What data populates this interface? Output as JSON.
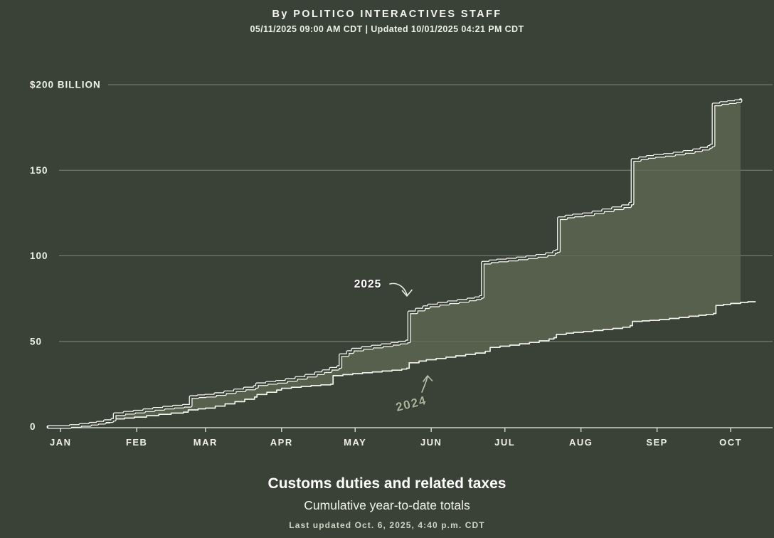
{
  "header": {
    "byline": "By POLITICO INTERACTIVES STAFF",
    "dateline": "05/11/2025 09:00 AM CDT | Updated 10/01/2025 04:21 PM CDT"
  },
  "footer": {
    "title": "Customs duties and related taxes",
    "subtitle": "Cumulative year-to-date totals",
    "last_updated": "Last updated Oct. 6, 2025, 4:40 p.m. CDT"
  },
  "colors": {
    "background": "#3a4237",
    "area_fill": "#57604d",
    "grid": "rgba(230,235,225,0.32)",
    "grid_over_fill": "rgba(240,244,235,0.10)",
    "axis": "#cdd2c5",
    "axis_label": "#eff1e8",
    "line_2025": "#f5f6f0",
    "line_2024": "#f2f3ec",
    "label_2025": "#ffffff",
    "label_2024": "#a9b39c",
    "arrow_2025": "#e8ebe2",
    "arrow_2024": "#b9c1ae"
  },
  "chart_data": {
    "type": "area",
    "title": "Customs duties and related taxes",
    "subtitle": "Cumulative year-to-date totals",
    "unit": "USD billions, cumulative year-to-date",
    "x_axis": {
      "tick_labels": [
        "JAN",
        "FEB",
        "MAR",
        "APR",
        "MAY",
        "JUN",
        "JUL",
        "AUG",
        "SEP",
        "OCT"
      ],
      "month_start_days": [
        0,
        31,
        59,
        90,
        120,
        151,
        181,
        212,
        243,
        273
      ],
      "grid": false
    },
    "y_axis": {
      "range": [
        0,
        200
      ],
      "ticks": [
        {
          "value": 200,
          "label": "$200 BILLION"
        },
        {
          "value": 150,
          "label": "150"
        },
        {
          "value": 100,
          "label": "100"
        },
        {
          "value": 50,
          "label": "50"
        },
        {
          "value": 0,
          "label": "0"
        }
      ],
      "grid": true
    },
    "annotations": [
      {
        "label": "2025",
        "series": "2025"
      },
      {
        "label": "2024",
        "series": "2024"
      }
    ],
    "fill_between": [
      "2025",
      "2024"
    ],
    "series": [
      {
        "name": "2025",
        "style": "double-line",
        "points_day_value": [
          [
            -5,
            0
          ],
          [
            0,
            0
          ],
          [
            4,
            0.6
          ],
          [
            8,
            1.2
          ],
          [
            12,
            1.9
          ],
          [
            15,
            2.5
          ],
          [
            18,
            3.4
          ],
          [
            21,
            4.2
          ],
          [
            22,
            7.5
          ],
          [
            26,
            8.3
          ],
          [
            30,
            9
          ],
          [
            34,
            9.8
          ],
          [
            38,
            10.6
          ],
          [
            42,
            11.3
          ],
          [
            46,
            11.9
          ],
          [
            50,
            12.4
          ],
          [
            53,
            17.5
          ],
          [
            56,
            18
          ],
          [
            59,
            18.3
          ],
          [
            63,
            19.2
          ],
          [
            67,
            20.3
          ],
          [
            71,
            21.4
          ],
          [
            75,
            22.5
          ],
          [
            79,
            23.4
          ],
          [
            80,
            25
          ],
          [
            84,
            25.8
          ],
          [
            88,
            26.4
          ],
          [
            92,
            27.5
          ],
          [
            96,
            28.7
          ],
          [
            100,
            30
          ],
          [
            104,
            31.4
          ],
          [
            107,
            32.6
          ],
          [
            110,
            34
          ],
          [
            113,
            35
          ],
          [
            114,
            42
          ],
          [
            117,
            43.8
          ],
          [
            119,
            45.2
          ],
          [
            123,
            46.2
          ],
          [
            127,
            47
          ],
          [
            131,
            47.8
          ],
          [
            135,
            48.6
          ],
          [
            138,
            49.3
          ],
          [
            141,
            50
          ],
          [
            142,
            67
          ],
          [
            145,
            68.6
          ],
          [
            148,
            70
          ],
          [
            150,
            71
          ],
          [
            154,
            72
          ],
          [
            158,
            72.9
          ],
          [
            162,
            73.7
          ],
          [
            166,
            74.5
          ],
          [
            169,
            75.2
          ],
          [
            171,
            76
          ],
          [
            172,
            96
          ],
          [
            175,
            96.8
          ],
          [
            178,
            97.3
          ],
          [
            182,
            97.8
          ],
          [
            186,
            98.5
          ],
          [
            190,
            99.2
          ],
          [
            194,
            100
          ],
          [
            198,
            101
          ],
          [
            201,
            102.2
          ],
          [
            202,
            102.8
          ],
          [
            203,
            122
          ],
          [
            206,
            123
          ],
          [
            209,
            123.6
          ],
          [
            213,
            124.3
          ],
          [
            217,
            125.4
          ],
          [
            221,
            126.6
          ],
          [
            225,
            127.8
          ],
          [
            229,
            129
          ],
          [
            232,
            130.5
          ],
          [
            233,
            156
          ],
          [
            236,
            157
          ],
          [
            239,
            157.8
          ],
          [
            242,
            158.4
          ],
          [
            246,
            159
          ],
          [
            250,
            159.8
          ],
          [
            254,
            160.7
          ],
          [
            258,
            161.7
          ],
          [
            261,
            162.6
          ],
          [
            264,
            163.6
          ],
          [
            265,
            164.5
          ],
          [
            266,
            188.5
          ],
          [
            269,
            189.3
          ],
          [
            272,
            189.8
          ],
          [
            275,
            190.4
          ],
          [
            277,
            191
          ]
        ]
      },
      {
        "name": "2024",
        "style": "line",
        "points_day_value": [
          [
            -5,
            0
          ],
          [
            0,
            0
          ],
          [
            5,
            0.8
          ],
          [
            10,
            1.6
          ],
          [
            15,
            2.4
          ],
          [
            20,
            3.2
          ],
          [
            21,
            4.7
          ],
          [
            26,
            5.2
          ],
          [
            30,
            5.8
          ],
          [
            35,
            6.6
          ],
          [
            40,
            7.4
          ],
          [
            45,
            8.1
          ],
          [
            50,
            8.7
          ],
          [
            52,
            10
          ],
          [
            56,
            10.6
          ],
          [
            59,
            11
          ],
          [
            63,
            12.2
          ],
          [
            67,
            13.5
          ],
          [
            71,
            14.8
          ],
          [
            75,
            16.2
          ],
          [
            79,
            17.5
          ],
          [
            80,
            19
          ],
          [
            84,
            20.3
          ],
          [
            88,
            21.6
          ],
          [
            90,
            22.6
          ],
          [
            94,
            23.2
          ],
          [
            98,
            23.7
          ],
          [
            102,
            24.2
          ],
          [
            106,
            24.6
          ],
          [
            110,
            25
          ],
          [
            111,
            30
          ],
          [
            115,
            30.6
          ],
          [
            119,
            31.2
          ],
          [
            123,
            31.7
          ],
          [
            127,
            32.2
          ],
          [
            131,
            32.7
          ],
          [
            135,
            33.2
          ],
          [
            139,
            33.8
          ],
          [
            141,
            34.3
          ],
          [
            142,
            37.5
          ],
          [
            146,
            38.5
          ],
          [
            149,
            39.3
          ],
          [
            153,
            40
          ],
          [
            157,
            40.8
          ],
          [
            161,
            41.6
          ],
          [
            165,
            42.4
          ],
          [
            169,
            43.2
          ],
          [
            173,
            44.2
          ],
          [
            175,
            46.5
          ],
          [
            179,
            47.2
          ],
          [
            183,
            47.8
          ],
          [
            187,
            48.6
          ],
          [
            191,
            49.4
          ],
          [
            195,
            50.3
          ],
          [
            199,
            51.4
          ],
          [
            201,
            52.2
          ],
          [
            202,
            54.1
          ],
          [
            206,
            54.8
          ],
          [
            209,
            55.3
          ],
          [
            213,
            55.8
          ],
          [
            217,
            56.4
          ],
          [
            221,
            57
          ],
          [
            225,
            57.6
          ],
          [
            229,
            58.3
          ],
          [
            232,
            59.2
          ],
          [
            233,
            61.7
          ],
          [
            237,
            62
          ],
          [
            240,
            62.3
          ],
          [
            244,
            62.8
          ],
          [
            248,
            63.4
          ],
          [
            252,
            64
          ],
          [
            256,
            64.7
          ],
          [
            260,
            65.3
          ],
          [
            263,
            65.8
          ],
          [
            266,
            66.3
          ],
          [
            267,
            71
          ],
          [
            270,
            71.6
          ],
          [
            273,
            72.2
          ],
          [
            277,
            72.8
          ],
          [
            280,
            73.2
          ],
          [
            283,
            73.5
          ]
        ]
      }
    ]
  }
}
